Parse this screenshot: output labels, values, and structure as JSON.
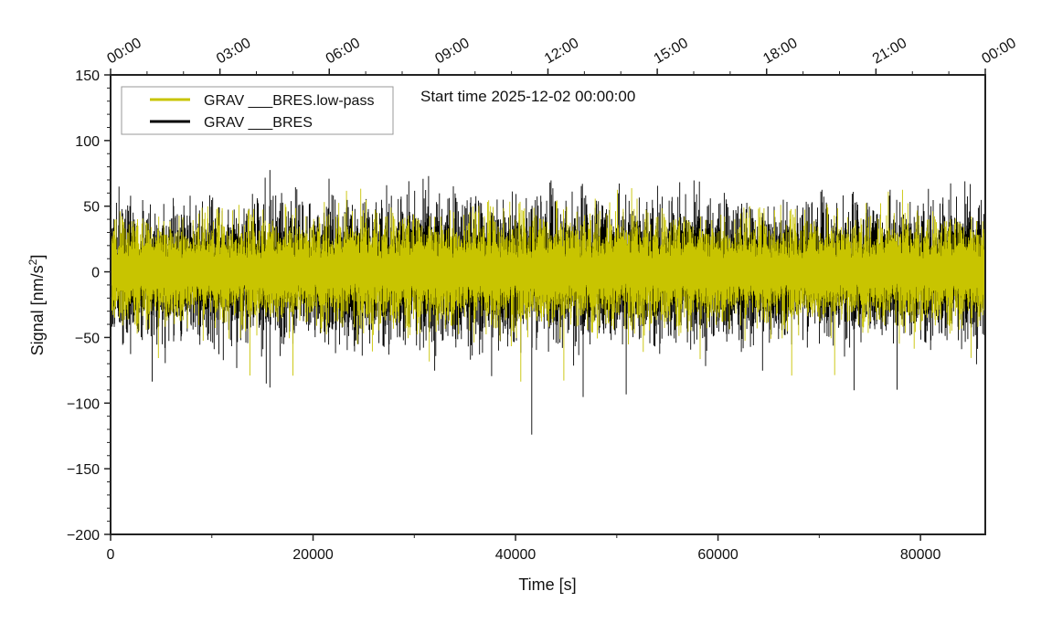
{
  "chart_data": {
    "type": "line",
    "title": "Start time 2025-12-02 00:00:00",
    "xlabel": "Time [s]",
    "ylabel_main": "Signal [nm/s",
    "ylabel_sup": "2",
    "ylabel_end": "]",
    "xlim": [
      0,
      86400
    ],
    "ylim": [
      -200,
      150
    ],
    "x_ticks": [
      0,
      20000,
      40000,
      60000,
      80000
    ],
    "x_tick_labels": [
      "0",
      "20000",
      "40000",
      "60000",
      "80000"
    ],
    "x_minor_step": 10000,
    "y_ticks": [
      150,
      100,
      50,
      0,
      -50,
      -100,
      -150,
      -200
    ],
    "y_tick_labels": [
      "150",
      "100",
      "50",
      "0",
      "−50",
      "−100",
      "−150",
      "−200"
    ],
    "y_minor_step": 10,
    "top_axis_labels": [
      "00:00",
      "03:00",
      "06:00",
      "09:00",
      "12:00",
      "15:00",
      "18:00",
      "21:00",
      "00:00"
    ],
    "top_axis_step_hours": 3,
    "legend_position": "top-left",
    "series": [
      {
        "name": "GRAV ___BRES.low-pass",
        "color": "#c8c400",
        "typical_amplitude": 40,
        "peak_range": [
          -99,
          98
        ]
      },
      {
        "name": "GRAV ___BRES",
        "color": "#000000",
        "typical_amplitude": 55,
        "peak_range": [
          -124,
          111
        ],
        "notable_spike": {
          "x": 41600,
          "y": -124
        }
      }
    ],
    "grid": false
  }
}
